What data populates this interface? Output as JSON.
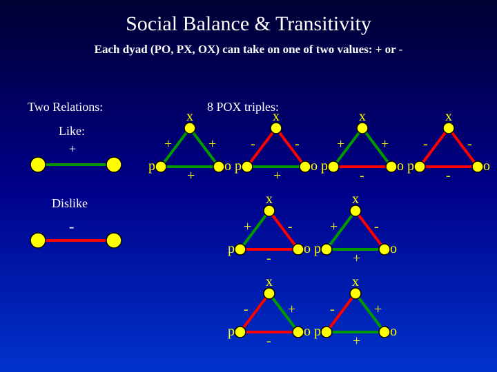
{
  "title": "Social Balance & Transitivity",
  "subtitle": "Each dyad (PO, PX, OX) can take on one of two values: + or -",
  "left": {
    "heading": "Two Relations:",
    "like_label": "Like:",
    "like_sign": "+",
    "dislike_label": "Dislike",
    "dislike_sign": "-"
  },
  "right_heading": "8 POX triples:",
  "colors": {
    "node_fill": "#ffff00",
    "node_stroke": "#000000",
    "like_line": "#009900",
    "dislike_line": "#ff0000",
    "text": "#ffff00"
  },
  "triangles": [
    {
      "id": "t1",
      "row": 0,
      "col": 0,
      "px": "+",
      "ox": "+",
      "po": "+"
    },
    {
      "id": "t2",
      "row": 0,
      "col": 1,
      "px": "-",
      "ox": "-",
      "po": "+"
    },
    {
      "id": "t3",
      "row": 0,
      "col": 2,
      "px": "+",
      "ox": "+",
      "po": "-"
    },
    {
      "id": "t4",
      "row": 0,
      "col": 3,
      "px": "-",
      "ox": "-",
      "po": "-"
    },
    {
      "id": "t5",
      "row": 1,
      "col": 0,
      "px": "+",
      "ox": "-",
      "po": "-"
    },
    {
      "id": "t6",
      "row": 1,
      "col": 1,
      "px": "+",
      "ox": "-",
      "po": "+"
    },
    {
      "id": "t7",
      "row": 2,
      "col": 0,
      "px": "-",
      "ox": "+",
      "po": "-"
    },
    {
      "id": "t8",
      "row": 2,
      "col": 1,
      "px": "-",
      "ox": "+",
      "po": "+"
    }
  ],
  "vertex_labels": {
    "top": "x",
    "left": "p",
    "right": "o"
  }
}
